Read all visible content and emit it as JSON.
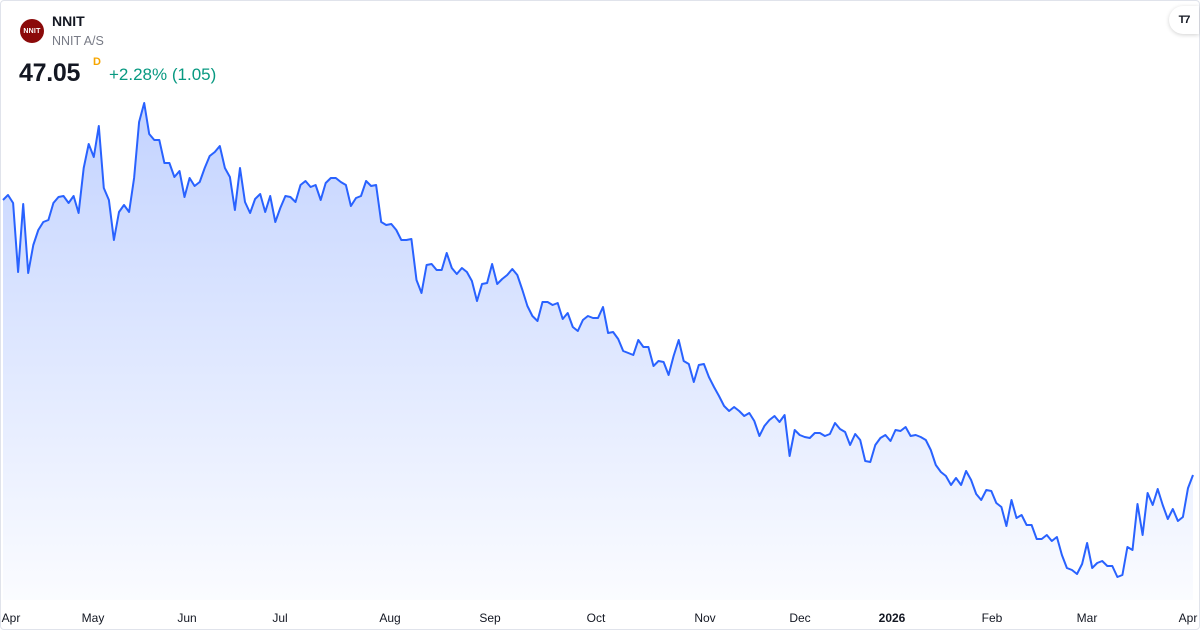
{
  "header": {
    "symbol": "NNIT",
    "name": "NNIT A/S",
    "logo_text": "NNIT",
    "price": "47.05",
    "interval": "D",
    "change": "+2.28% (1.05)",
    "brand_mark": "TV"
  },
  "colors": {
    "line": "#2962ff",
    "positive": "#089981",
    "interval": "#f7a600",
    "logo": "#8b0a0a"
  },
  "chart_data": {
    "type": "area",
    "title": "NNIT",
    "xlabel": "",
    "ylabel": "",
    "grid": false,
    "ylim": [
      37,
      78
    ],
    "x_tick_labels": [
      "Apr",
      "May",
      "Jun",
      "Jul",
      "Aug",
      "Sep",
      "Oct",
      "Nov",
      "Dec",
      "2026",
      "Feb",
      "Mar",
      "Apr"
    ],
    "series": [
      {
        "values": [
          69.05,
          69.45,
          68.81,
          63.29,
          68.73,
          63.21,
          65.45,
          66.65,
          67.29,
          67.45,
          68.81,
          69.29,
          69.37,
          68.81,
          69.37,
          68.01,
          71.61,
          73.53,
          72.49,
          74.97,
          70.01,
          69.05,
          65.85,
          68.09,
          68.65,
          68.09,
          70.81,
          75.29,
          76.81,
          74.33,
          73.85,
          73.85,
          72.01,
          72.01,
          70.89,
          71.37,
          69.29,
          70.81,
          70.17,
          70.49,
          71.61,
          72.57,
          72.89,
          73.37,
          71.61,
          70.89,
          68.25,
          71.61,
          68.89,
          68.01,
          69.13,
          69.53,
          68.09,
          69.37,
          67.29,
          68.41,
          69.37,
          69.29,
          68.89,
          70.25,
          70.57,
          70.09,
          70.25,
          69.05,
          70.41,
          70.81,
          70.81,
          70.49,
          70.25,
          68.57,
          69.21,
          69.37,
          70.57,
          70.17,
          70.25,
          67.29,
          67.05,
          67.13,
          66.65,
          65.85,
          65.85,
          65.93,
          62.65,
          61.61,
          63.85,
          63.93,
          63.45,
          63.45,
          64.81,
          63.61,
          63.13,
          63.61,
          63.29,
          62.57,
          60.97,
          62.33,
          62.41,
          63.93,
          62.33,
          62.73,
          63.05,
          63.53,
          63.05,
          61.85,
          60.57,
          59.77,
          59.37,
          60.89,
          60.89,
          60.65,
          60.81,
          59.53,
          60.01,
          58.89,
          58.57,
          59.45,
          59.77,
          59.61,
          59.61,
          60.49,
          58.41,
          58.49,
          57.93,
          56.97,
          56.81,
          56.65,
          57.85,
          57.29,
          57.29,
          55.77,
          56.17,
          56.09,
          55.05,
          56.57,
          57.85,
          56.17,
          55.93,
          54.49,
          55.85,
          55.93,
          54.89,
          54.09,
          53.37,
          52.57,
          52.17,
          52.49,
          52.17,
          51.77,
          52.01,
          51.37,
          50.17,
          50.97,
          51.45,
          51.77,
          51.29,
          51.85,
          48.57,
          50.65,
          50.25,
          50.09,
          50.01,
          50.41,
          50.41,
          50.17,
          50.33,
          51.21,
          50.73,
          50.49,
          49.45,
          50.33,
          49.85,
          48.17,
          48.09,
          49.45,
          50.01,
          50.25,
          49.77,
          50.65,
          50.57,
          50.89,
          50.17,
          50.25,
          50.09,
          49.85,
          49.05,
          47.85,
          47.29,
          46.97,
          46.25,
          46.81,
          46.25,
          47.37,
          46.65,
          45.53,
          45.05,
          45.85,
          45.77,
          44.81,
          44.49,
          42.97,
          45.05,
          43.61,
          43.85,
          43.05,
          43.05,
          41.93,
          41.93,
          42.25,
          41.77,
          42.09,
          40.65,
          39.61,
          39.45,
          39.13,
          39.93,
          41.61,
          39.61,
          40.01,
          40.17,
          39.77,
          39.77,
          38.89,
          39.05,
          41.29,
          41.05,
          44.73,
          42.25,
          45.61,
          44.65,
          45.93,
          44.65,
          43.53,
          44.33,
          43.37,
          43.69,
          46.0,
          47.05
        ]
      }
    ]
  }
}
